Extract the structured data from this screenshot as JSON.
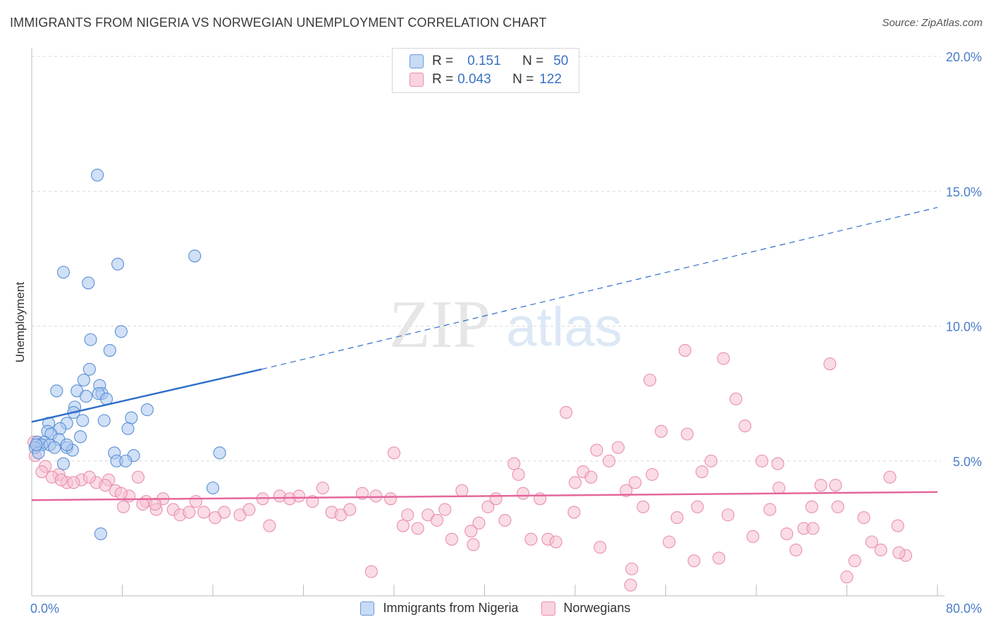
{
  "header": {
    "title": "IMMIGRANTS FROM NIGERIA VS NORWEGIAN UNEMPLOYMENT CORRELATION CHART",
    "source": "Source: ZipAtlas.com"
  },
  "watermark": {
    "zip": "ZIP",
    "atlas": "atlas"
  },
  "legend": {
    "rows": [
      {
        "r_label": "R =",
        "r_value": "0.151",
        "n_label": "N =",
        "n_value": "50"
      },
      {
        "r_label": "R =",
        "r_value": "0.043",
        "n_label": "N =",
        "n_value": "122"
      }
    ]
  },
  "colors": {
    "blue": "#5b8fd6",
    "blue_fill": "#aac7ee",
    "blue_line": "#2f6fc9",
    "pink": "#e98fae",
    "pink_fill": "#f5bfd0",
    "pink_line": "#e4679a",
    "grid": "#d9d9d9",
    "tick_text": "#4a7cc9"
  },
  "chart_data": {
    "type": "scatter",
    "title": "IMMIGRANTS FROM NIGERIA VS NORWEGIAN UNEMPLOYMENT CORRELATION CHART",
    "xlabel": "",
    "ylabel": "Unemployment",
    "xlim": [
      0,
      80
    ],
    "ylim": [
      0,
      20
    ],
    "x_tick_labels": [
      "0.0%",
      "80.0%"
    ],
    "y_ticks": [
      5,
      10,
      15,
      20
    ],
    "y_tick_labels": [
      "5.0%",
      "10.0%",
      "15.0%",
      "20.0%"
    ],
    "grid": true,
    "legend_position": "top-center",
    "series": [
      {
        "name": "Immigrants from Nigeria",
        "color": "blue",
        "trend": {
          "x": [
            0,
            20.3
          ],
          "y": [
            6.45,
            8.4
          ],
          "dashed_to": [
            80,
            14.4
          ]
        },
        "points": [
          [
            5.8,
            15.6
          ],
          [
            14.4,
            12.6
          ],
          [
            7.6,
            12.3
          ],
          [
            2.8,
            12.0
          ],
          [
            5.0,
            11.6
          ],
          [
            7.9,
            9.8
          ],
          [
            5.2,
            9.5
          ],
          [
            6.9,
            9.1
          ],
          [
            5.1,
            8.4
          ],
          [
            4.6,
            8.0
          ],
          [
            6.0,
            7.8
          ],
          [
            2.2,
            7.6
          ],
          [
            4.0,
            7.6
          ],
          [
            6.2,
            7.5
          ],
          [
            5.9,
            7.5
          ],
          [
            4.8,
            7.4
          ],
          [
            6.6,
            7.3
          ],
          [
            3.8,
            7.0
          ],
          [
            10.2,
            6.9
          ],
          [
            3.7,
            6.8
          ],
          [
            8.8,
            6.6
          ],
          [
            4.5,
            6.5
          ],
          [
            6.4,
            6.5
          ],
          [
            1.5,
            6.4
          ],
          [
            3.1,
            6.4
          ],
          [
            8.5,
            6.2
          ],
          [
            1.4,
            6.1
          ],
          [
            2.5,
            6.2
          ],
          [
            1.7,
            6.0
          ],
          [
            4.3,
            5.9
          ],
          [
            2.4,
            5.8
          ],
          [
            0.5,
            5.7
          ],
          [
            1.1,
            5.7
          ],
          [
            0.9,
            5.6
          ],
          [
            1.6,
            5.6
          ],
          [
            3.1,
            5.5
          ],
          [
            0.3,
            5.5
          ],
          [
            2.0,
            5.5
          ],
          [
            3.6,
            5.4
          ],
          [
            0.6,
            5.3
          ],
          [
            3.1,
            5.6
          ],
          [
            7.3,
            5.3
          ],
          [
            16.6,
            5.3
          ],
          [
            9.0,
            5.2
          ],
          [
            7.5,
            5.0
          ],
          [
            8.3,
            5.0
          ],
          [
            2.8,
            4.9
          ],
          [
            16.0,
            4.0
          ],
          [
            6.1,
            2.3
          ],
          [
            0.4,
            5.6
          ]
        ]
      },
      {
        "name": "Norwegians",
        "color": "pink",
        "trend": {
          "x": [
            0,
            80
          ],
          "y": [
            3.55,
            3.85
          ]
        },
        "points": [
          [
            0.2,
            5.7
          ],
          [
            0.3,
            5.2
          ],
          [
            1.2,
            4.8
          ],
          [
            0.9,
            4.6
          ],
          [
            2.4,
            4.5
          ],
          [
            1.8,
            4.4
          ],
          [
            3.1,
            4.2
          ],
          [
            2.6,
            4.3
          ],
          [
            4.4,
            4.3
          ],
          [
            3.7,
            4.2
          ],
          [
            5.7,
            4.2
          ],
          [
            6.8,
            4.3
          ],
          [
            5.1,
            4.4
          ],
          [
            9.4,
            4.4
          ],
          [
            6.5,
            4.1
          ],
          [
            7.4,
            3.9
          ],
          [
            8.6,
            3.7
          ],
          [
            10.1,
            3.5
          ],
          [
            11.6,
            3.6
          ],
          [
            7.9,
            3.8
          ],
          [
            9.8,
            3.4
          ],
          [
            12.5,
            3.2
          ],
          [
            13.1,
            3.0
          ],
          [
            14.5,
            3.5
          ],
          [
            15.2,
            3.1
          ],
          [
            11.0,
            3.2
          ],
          [
            8.1,
            3.3
          ],
          [
            10.9,
            3.4
          ],
          [
            13.9,
            3.1
          ],
          [
            16.2,
            2.9
          ],
          [
            17.0,
            3.1
          ],
          [
            18.4,
            3.0
          ],
          [
            19.2,
            3.2
          ],
          [
            20.4,
            3.6
          ],
          [
            21.0,
            2.6
          ],
          [
            21.9,
            3.7
          ],
          [
            22.8,
            3.6
          ],
          [
            23.6,
            3.7
          ],
          [
            24.8,
            3.5
          ],
          [
            25.7,
            4.0
          ],
          [
            26.5,
            3.1
          ],
          [
            27.3,
            3.0
          ],
          [
            28.1,
            3.2
          ],
          [
            29.2,
            3.8
          ],
          [
            30.4,
            3.7
          ],
          [
            31.7,
            3.6
          ],
          [
            32.8,
            2.6
          ],
          [
            33.2,
            3.0
          ],
          [
            34.1,
            2.5
          ],
          [
            35.0,
            3.0
          ],
          [
            35.8,
            2.8
          ],
          [
            36.5,
            3.2
          ],
          [
            37.1,
            2.1
          ],
          [
            38.0,
            3.9
          ],
          [
            38.8,
            2.4
          ],
          [
            39.5,
            2.7
          ],
          [
            40.3,
            3.3
          ],
          [
            41.0,
            3.6
          ],
          [
            41.8,
            2.8
          ],
          [
            42.6,
            4.9
          ],
          [
            43.4,
            3.8
          ],
          [
            44.1,
            2.1
          ],
          [
            44.9,
            3.6
          ],
          [
            45.6,
            2.1
          ],
          [
            46.3,
            2.0
          ],
          [
            47.2,
            6.8
          ],
          [
            47.9,
            3.1
          ],
          [
            48.7,
            4.6
          ],
          [
            49.4,
            4.4
          ],
          [
            50.2,
            1.8
          ],
          [
            51.0,
            5.0
          ],
          [
            51.8,
            5.5
          ],
          [
            52.5,
            3.9
          ],
          [
            53.3,
            4.2
          ],
          [
            54.0,
            3.3
          ],
          [
            54.8,
            4.5
          ],
          [
            55.6,
            6.1
          ],
          [
            56.3,
            2.0
          ],
          [
            57.0,
            2.9
          ],
          [
            57.7,
            9.1
          ],
          [
            58.5,
            1.3
          ],
          [
            59.2,
            4.6
          ],
          [
            60.0,
            5.0
          ],
          [
            60.7,
            1.4
          ],
          [
            61.5,
            3.0
          ],
          [
            62.2,
            7.3
          ],
          [
            63.0,
            6.3
          ],
          [
            63.7,
            2.2
          ],
          [
            64.5,
            5.0
          ],
          [
            65.2,
            3.2
          ],
          [
            66.0,
            4.0
          ],
          [
            66.7,
            2.3
          ],
          [
            67.5,
            1.7
          ],
          [
            68.2,
            2.5
          ],
          [
            69.0,
            2.5
          ],
          [
            69.7,
            4.1
          ],
          [
            70.5,
            8.6
          ],
          [
            71.2,
            3.3
          ],
          [
            72.0,
            0.7
          ],
          [
            72.7,
            1.3
          ],
          [
            73.5,
            2.9
          ],
          [
            74.2,
            2.0
          ],
          [
            75.0,
            1.7
          ],
          [
            75.8,
            4.4
          ],
          [
            76.5,
            2.6
          ],
          [
            77.2,
            1.5
          ],
          [
            53.0,
            1.0
          ],
          [
            52.9,
            0.4
          ],
          [
            61.1,
            8.8
          ],
          [
            57.9,
            6.0
          ],
          [
            65.9,
            4.9
          ],
          [
            30.0,
            0.9
          ],
          [
            43.0,
            4.5
          ],
          [
            32.0,
            5.3
          ],
          [
            49.9,
            5.4
          ],
          [
            48.0,
            4.2
          ],
          [
            54.6,
            8.0
          ],
          [
            39.0,
            1.9
          ],
          [
            58.8,
            3.3
          ],
          [
            76.6,
            1.6
          ],
          [
            71.0,
            4.1
          ],
          [
            68.9,
            3.3
          ]
        ]
      }
    ]
  },
  "bottom_legend": {
    "items": [
      {
        "label": "Immigrants from Nigeria",
        "color": "blue"
      },
      {
        "label": "Norwegians",
        "color": "pink"
      }
    ]
  }
}
